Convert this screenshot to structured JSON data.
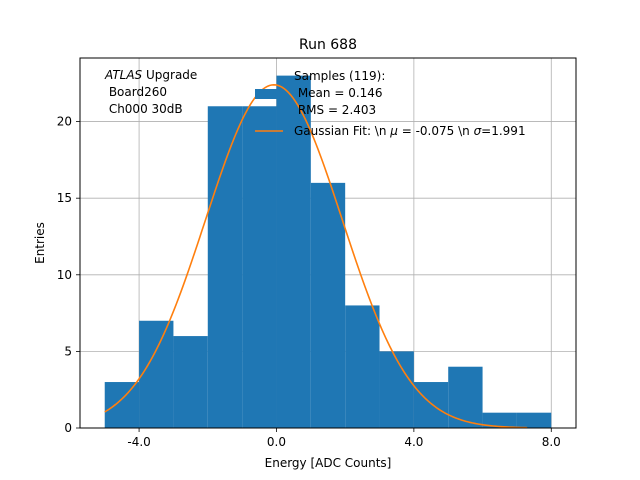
{
  "chart_data": {
    "type": "bar",
    "title": "Run 688",
    "xlabel": "Energy [ADC Counts]",
    "ylabel": "Entries",
    "xlim": [
      -5.72,
      8.72
    ],
    "ylim": [
      0,
      24.15
    ],
    "grid": true,
    "xticks": [
      {
        "value": -4,
        "label": "-4.0"
      },
      {
        "value": 0,
        "label": "0.0"
      },
      {
        "value": 4,
        "label": "4.0"
      },
      {
        "value": 8,
        "label": "8.0"
      }
    ],
    "yticks": [
      {
        "value": 0,
        "label": "0"
      },
      {
        "value": 5,
        "label": "5"
      },
      {
        "value": 10,
        "label": "10"
      },
      {
        "value": 15,
        "label": "15"
      },
      {
        "value": 20,
        "label": "20"
      }
    ],
    "histogram": {
      "bin_edges": [
        -5,
        -4,
        -3,
        -2,
        -1,
        0,
        1,
        2,
        3,
        4,
        5,
        6,
        7,
        8
      ],
      "counts": [
        3,
        7,
        6,
        21,
        21,
        23,
        16,
        8,
        5,
        3,
        4,
        1,
        1
      ],
      "color": "#1f77b4"
    },
    "gaussian_fit": {
      "mu": -0.075,
      "sigma": 1.991,
      "amplitude": 22.4,
      "x_range": [
        -5,
        7.3
      ],
      "color": "#ff7f0e"
    },
    "annotation": {
      "atlas": "ATLAS",
      "upgrade": " Upgrade",
      "line2": " Board260",
      "line3": " Ch000 30dB"
    },
    "legend": {
      "placement": "upper-right",
      "entries": [
        {
          "series": "histogram",
          "lines": [
            "Samples (119):",
            " Mean = 0.146",
            " RMS = 2.403"
          ],
          "color": "#1f77b4"
        },
        {
          "series": "gaussian_fit",
          "label_prefix": "Gaussian Fit: \\n ",
          "mu_symbol": "μ",
          "mu_text": " = -0.075 \\n ",
          "sigma_symbol": "σ",
          "sigma_text": "=1.991",
          "color": "#ff7f0e"
        }
      ]
    }
  }
}
